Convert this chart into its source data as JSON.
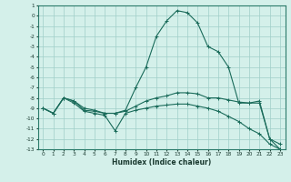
{
  "xlabel": "Humidex (Indice chaleur)",
  "bg_color": "#d4f0ea",
  "grid_color": "#a0cec8",
  "line_color": "#1a6b5a",
  "xlim": [
    -0.5,
    23.5
  ],
  "ylim": [
    -13,
    1
  ],
  "xticks": [
    0,
    1,
    2,
    3,
    4,
    5,
    6,
    7,
    8,
    9,
    10,
    11,
    12,
    13,
    14,
    15,
    16,
    17,
    18,
    19,
    20,
    21,
    22,
    23
  ],
  "yticks": [
    1,
    0,
    -1,
    -2,
    -3,
    -4,
    -5,
    -6,
    -7,
    -8,
    -9,
    -10,
    -11,
    -12,
    -13
  ],
  "c1_x": [
    0,
    1,
    2,
    3,
    4,
    5,
    6,
    7,
    8,
    9,
    10,
    11,
    12,
    13,
    14,
    15,
    16,
    17,
    18,
    19,
    20,
    21,
    22,
    23
  ],
  "c1_y": [
    -9,
    -9.5,
    -8,
    -8.3,
    -9,
    -9.2,
    -9.5,
    -9.5,
    -9.2,
    -7,
    -5,
    -2,
    -0.5,
    0.5,
    0.3,
    -0.7,
    -3,
    -3.5,
    -5,
    -8.5,
    -8.5,
    -8.3,
    -12,
    -12.5
  ],
  "c2_x": [
    0,
    1,
    2,
    3,
    4,
    5,
    6,
    7,
    8,
    9,
    10,
    11,
    12,
    13,
    14,
    15,
    16,
    17,
    18,
    19,
    20,
    21,
    22,
    23
  ],
  "c2_y": [
    -9,
    -9.5,
    -8,
    -8.3,
    -9.2,
    -9.3,
    -9.5,
    -9.5,
    -9.3,
    -8.8,
    -8.3,
    -8.0,
    -7.8,
    -7.5,
    -7.5,
    -7.6,
    -8.0,
    -8.0,
    -8.2,
    -8.4,
    -8.5,
    -8.5,
    -12.0,
    -13.0
  ],
  "c3_x": [
    0,
    1,
    2,
    3,
    4,
    5,
    6,
    7,
    8,
    9,
    10,
    11,
    12,
    13,
    14,
    15,
    16,
    17,
    18,
    19,
    20,
    21,
    22,
    23
  ],
  "c3_y": [
    -9,
    -9.5,
    -8,
    -8.5,
    -9.3,
    -9.5,
    -9.7,
    -11.2,
    -9.5,
    -9.2,
    -9.0,
    -8.8,
    -8.7,
    -8.6,
    -8.6,
    -8.8,
    -9.0,
    -9.3,
    -9.8,
    -10.3,
    -11.0,
    -11.5,
    -12.5,
    -13.0
  ]
}
